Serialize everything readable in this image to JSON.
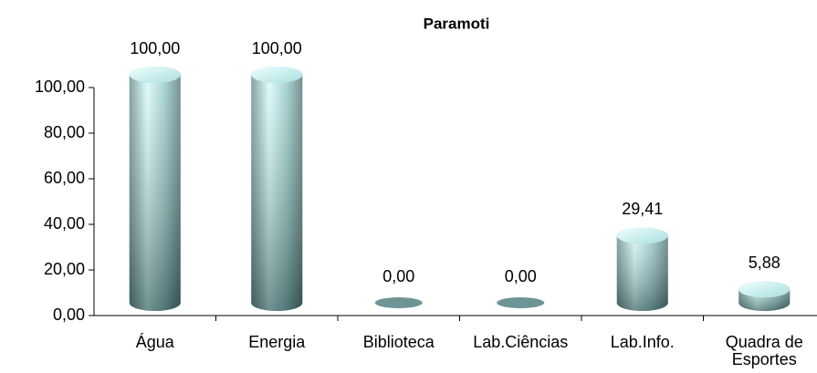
{
  "chart_data": {
    "type": "bar",
    "title": "Paramoti",
    "categories": [
      "Água",
      "Energia",
      "Biblioteca",
      "Lab.Ciências",
      "Lab.Info.",
      "Quadra de Esportes"
    ],
    "values": [
      100,
      100,
      0,
      0,
      29.41,
      5.88
    ],
    "value_labels": [
      "100,00",
      "100,00",
      "0,00",
      "0,00",
      "29,41",
      "5,88"
    ],
    "color": "#8fd3d3",
    "ylim": [
      0,
      100
    ],
    "yticks": [
      {
        "value": 0,
        "label": "0,00"
      },
      {
        "value": 20,
        "label": "20,00"
      },
      {
        "value": 40,
        "label": "40,00"
      },
      {
        "value": 60,
        "label": "60,00"
      },
      {
        "value": 80,
        "label": "80,00"
      },
      {
        "value": 100,
        "label": "100,00"
      }
    ],
    "grid": false
  }
}
